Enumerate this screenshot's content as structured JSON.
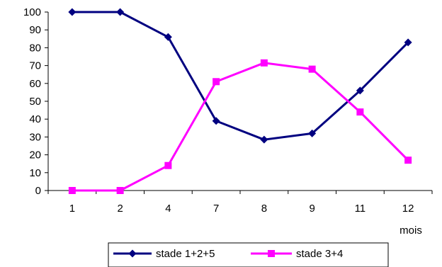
{
  "chart_data": {
    "type": "line",
    "title": "",
    "xlabel": "mois",
    "ylabel": "",
    "categories": [
      "1",
      "2",
      "4",
      "7",
      "8",
      "9",
      "11",
      "12"
    ],
    "ylim": [
      0,
      100
    ],
    "yticks": [
      0,
      10,
      20,
      30,
      40,
      50,
      60,
      70,
      80,
      90,
      100
    ],
    "grid": false,
    "legend_position": "bottom",
    "series": [
      {
        "name": "stade 1+2+5",
        "color": "#000080",
        "marker": "diamond",
        "values": [
          100,
          100,
          86,
          39,
          28.5,
          32,
          56,
          83
        ]
      },
      {
        "name": "stade 3+4",
        "color": "#FF00FF",
        "marker": "square",
        "values": [
          0,
          0,
          14,
          61,
          71.5,
          68,
          44,
          17
        ]
      }
    ]
  }
}
